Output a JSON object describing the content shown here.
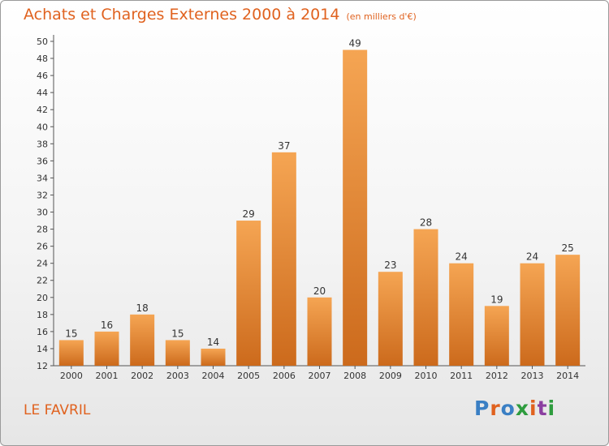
{
  "title": "Achats et Charges Externes 2000 à 2014",
  "unit": "(en milliers d'€)",
  "location": "LE FAVRIL",
  "brand": {
    "text": "Proxiti",
    "colors": [
      "#3a7fc4",
      "#e0621f",
      "#3a7fc4",
      "#2e9c3e",
      "#e0621f",
      "#8b3fa0",
      "#2e9c3e"
    ]
  },
  "chart_data": {
    "type": "bar",
    "title": "Achats et Charges Externes 2000 à 2014",
    "subtitle": "(en milliers d'€)",
    "xlabel": "",
    "ylabel": "",
    "categories": [
      "2000",
      "2001",
      "2002",
      "2003",
      "2004",
      "2005",
      "2006",
      "2007",
      "2008",
      "2009",
      "2010",
      "2011",
      "2012",
      "2013",
      "2014"
    ],
    "values": [
      15,
      16,
      18,
      15,
      14,
      29,
      37,
      20,
      49,
      23,
      28,
      24,
      19,
      24,
      25
    ],
    "ylim": [
      12,
      50
    ],
    "yticks": [
      12,
      14,
      16,
      18,
      20,
      22,
      24,
      26,
      28,
      30,
      32,
      34,
      36,
      38,
      40,
      42,
      44,
      46,
      48,
      50
    ],
    "grid": false,
    "legend": "none",
    "bar_color_light": "#f5a553",
    "bar_color_dark": "#cc6a1c",
    "axis_color": "#555555"
  }
}
